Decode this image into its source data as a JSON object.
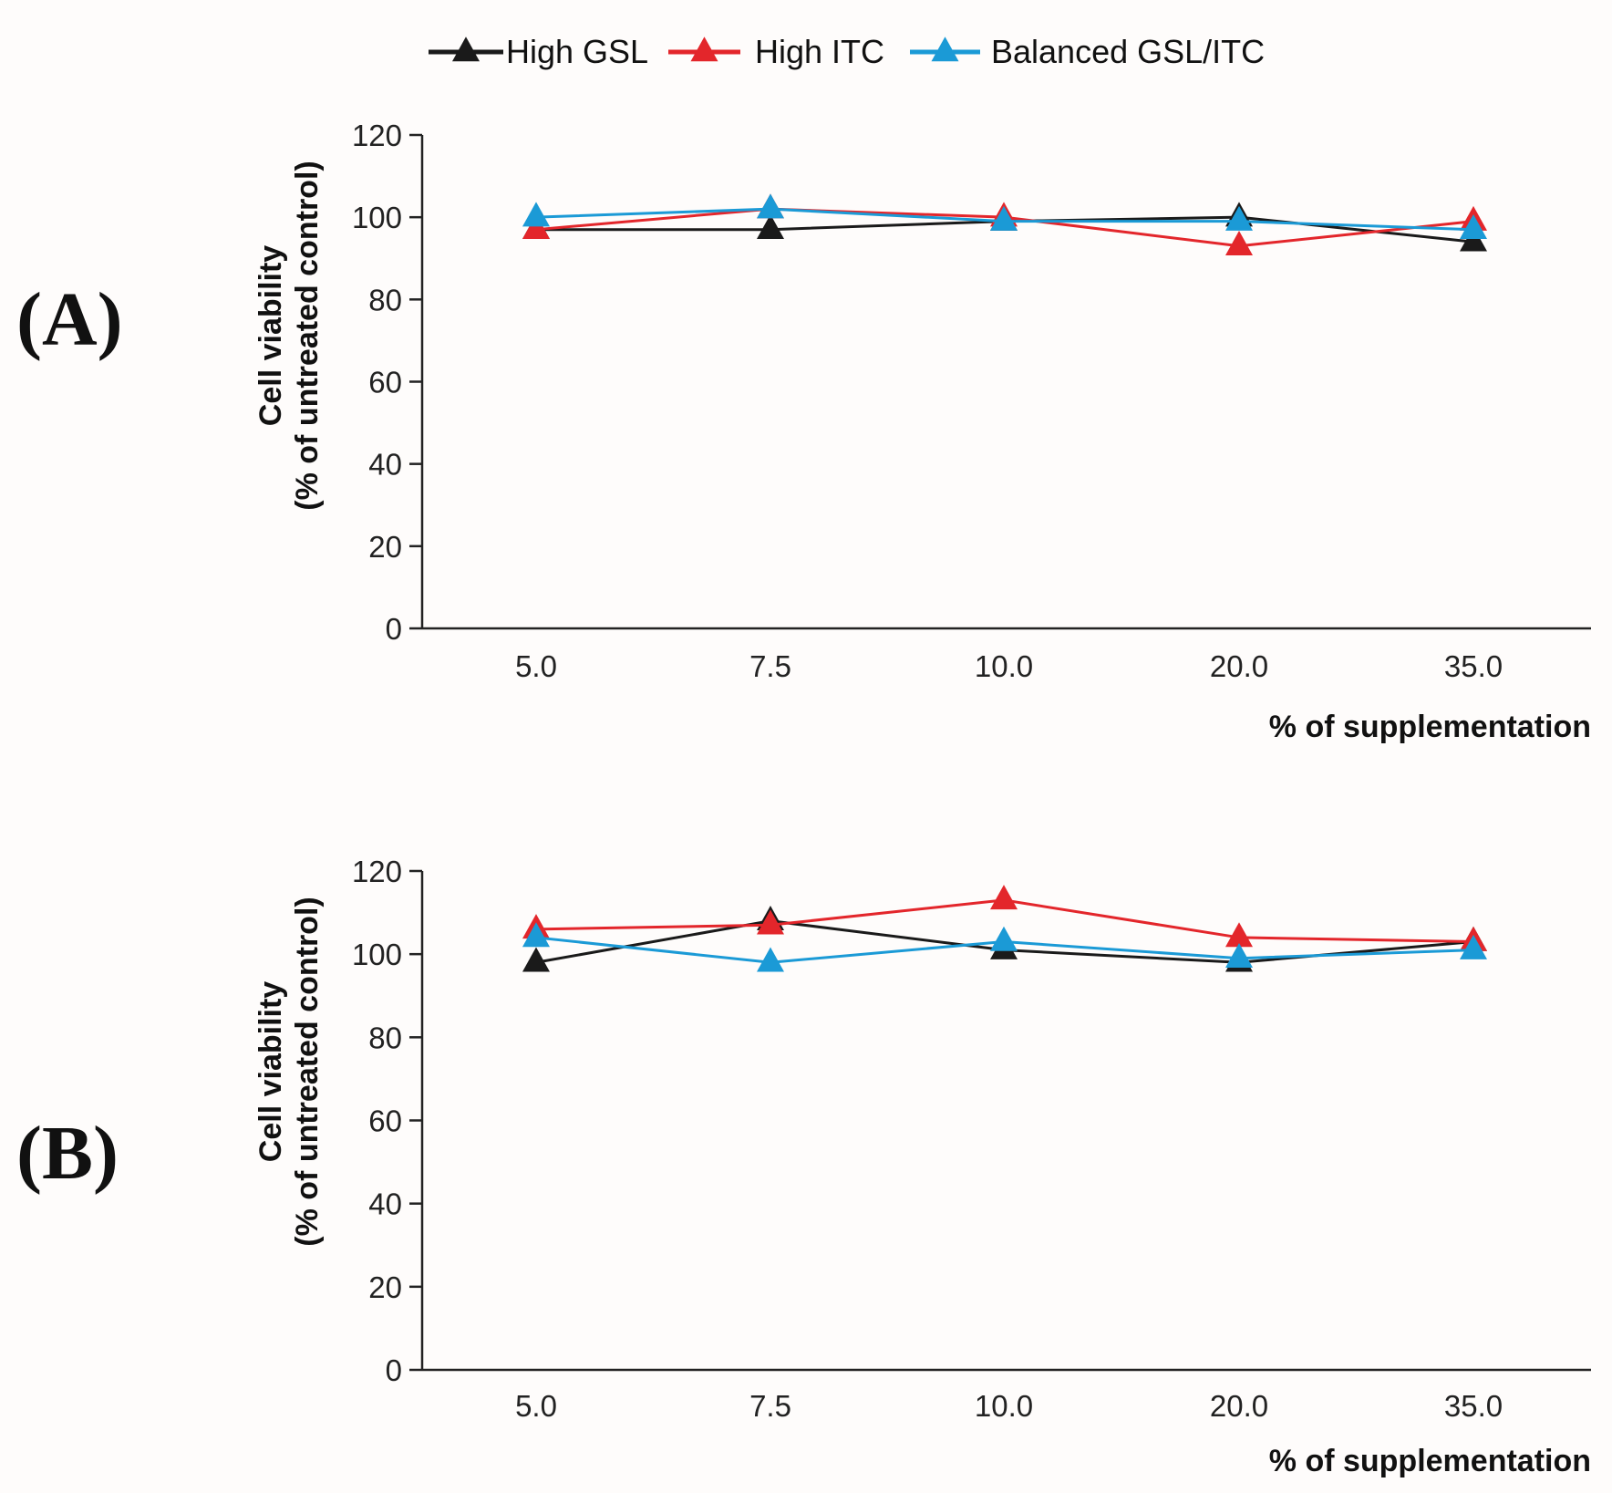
{
  "legend": {
    "items": [
      {
        "label": "High GSL",
        "color": "#1a1a1a"
      },
      {
        "label": "High ITC",
        "color": "#e3262b"
      },
      {
        "label": "Balanced GSL/ITC",
        "color": "#1b9ad6"
      }
    ]
  },
  "chart_data": [
    {
      "type": "line",
      "panel_label": "(A)",
      "categories": [
        "5.0",
        "7.5",
        "10.0",
        "20.0",
        "35.0"
      ],
      "xlabel": "% of supplementation",
      "ylabel_line1": "Cell viability",
      "ylabel_line2": "(% of untreated control)",
      "ylim": [
        0,
        120
      ],
      "yticks": [
        0,
        20,
        40,
        60,
        80,
        100,
        120
      ],
      "grid": false,
      "series": [
        {
          "name": "High GSL",
          "color": "#1a1a1a",
          "values": [
            97,
            97,
            99,
            100,
            94
          ]
        },
        {
          "name": "High ITC",
          "color": "#e3262b",
          "values": [
            97,
            102,
            100,
            93,
            99
          ]
        },
        {
          "name": "Balanced GSL/ITC",
          "color": "#1b9ad6",
          "values": [
            100,
            102,
            99,
            99,
            97
          ]
        }
      ]
    },
    {
      "type": "line",
      "panel_label": "(B)",
      "categories": [
        "5.0",
        "7.5",
        "10.0",
        "20.0",
        "35.0"
      ],
      "xlabel": "% of supplementation",
      "ylabel_line1": "Cell viability",
      "ylabel_line2": "(% of untreated control)",
      "ylim": [
        0,
        120
      ],
      "yticks": [
        0,
        20,
        40,
        60,
        80,
        100,
        120
      ],
      "grid": false,
      "series": [
        {
          "name": "High GSL",
          "color": "#1a1a1a",
          "values": [
            98,
            108,
            101,
            98,
            103
          ]
        },
        {
          "name": "High ITC",
          "color": "#e3262b",
          "values": [
            106,
            107,
            113,
            104,
            103
          ]
        },
        {
          "name": "Balanced GSL/ITC",
          "color": "#1b9ad6",
          "values": [
            104,
            98,
            103,
            99,
            101
          ]
        }
      ]
    }
  ]
}
